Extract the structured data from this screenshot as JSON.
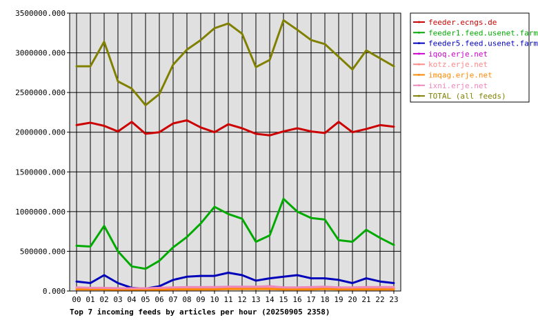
{
  "chart_data": {
    "type": "line",
    "title": "Top 7 incoming feeds by articles per hour (20250905 2358)",
    "xlabel": "",
    "ylabel": "",
    "categories": [
      "00",
      "01",
      "02",
      "03",
      "04",
      "05",
      "06",
      "07",
      "08",
      "09",
      "10",
      "11",
      "12",
      "13",
      "14",
      "15",
      "16",
      "17",
      "18",
      "19",
      "20",
      "21",
      "22",
      "23"
    ],
    "ylim": [
      0,
      3500000
    ],
    "yticks": [
      0,
      500000,
      1000000,
      1500000,
      2000000,
      2500000,
      3000000,
      3500000
    ],
    "ytick_labels": [
      "0.000",
      "500000.000",
      "1000000.000",
      "1500000.000",
      "2000000.000",
      "2500000.000",
      "3000000.000",
      "3500000.000"
    ],
    "grid": true,
    "legend_position": "top-right",
    "series": [
      {
        "name": "feeder.ecngs.de",
        "color": "#cc0000",
        "values": [
          2090000,
          2120000,
          2080000,
          2010000,
          2130000,
          1980000,
          2000000,
          2110000,
          2150000,
          2060000,
          2000000,
          2100000,
          2050000,
          1980000,
          1960000,
          2010000,
          2050000,
          2010000,
          1990000,
          2130000,
          2000000,
          2040000,
          2090000,
          2070000
        ]
      },
      {
        "name": "feeder1.feed.usenet.farm",
        "color": "#00aa00",
        "values": [
          570000,
          560000,
          820000,
          500000,
          310000,
          280000,
          380000,
          550000,
          680000,
          850000,
          1060000,
          970000,
          910000,
          620000,
          700000,
          1160000,
          1000000,
          920000,
          900000,
          640000,
          620000,
          770000,
          670000,
          580000
        ]
      },
      {
        "name": "feeder5.feed.usenet.farm",
        "color": "#0000bb",
        "values": [
          120000,
          100000,
          200000,
          100000,
          40000,
          30000,
          60000,
          140000,
          180000,
          190000,
          190000,
          230000,
          200000,
          130000,
          160000,
          180000,
          200000,
          160000,
          160000,
          140000,
          100000,
          160000,
          120000,
          100000
        ]
      },
      {
        "name": "iqoq.erje.net",
        "color": "#cc00cc",
        "values": [
          40000,
          30000,
          30000,
          30000,
          30000,
          30000,
          30000,
          40000,
          40000,
          40000,
          40000,
          40000,
          50000,
          50000,
          60000,
          40000,
          40000,
          40000,
          50000,
          40000,
          40000,
          40000,
          40000,
          40000
        ]
      },
      {
        "name": "kotz.erje.net",
        "color": "#ff8888",
        "values": [
          35000,
          30000,
          30000,
          25000,
          25000,
          25000,
          30000,
          30000,
          35000,
          35000,
          35000,
          40000,
          40000,
          40000,
          45000,
          35000,
          35000,
          40000,
          40000,
          35000,
          35000,
          35000,
          35000,
          35000
        ]
      },
      {
        "name": "imqag.erje.net",
        "color": "#ff8800",
        "values": [
          20000,
          20000,
          20000,
          15000,
          15000,
          15000,
          15000,
          20000,
          20000,
          20000,
          20000,
          25000,
          25000,
          25000,
          25000,
          20000,
          20000,
          20000,
          25000,
          20000,
          20000,
          20000,
          20000,
          20000
        ]
      },
      {
        "name": "ixni.erje.net",
        "color": "#ee88bb",
        "values": [
          45000,
          40000,
          40000,
          35000,
          35000,
          35000,
          40000,
          45000,
          50000,
          50000,
          50000,
          55000,
          55000,
          55000,
          60000,
          45000,
          45000,
          50000,
          55000,
          45000,
          45000,
          50000,
          50000,
          50000
        ]
      },
      {
        "name": "TOTAL (all feeds)",
        "color": "#808000",
        "values": [
          2830000,
          2830000,
          3140000,
          2640000,
          2550000,
          2340000,
          2480000,
          2850000,
          3040000,
          3160000,
          3310000,
          3370000,
          3240000,
          2820000,
          2910000,
          3410000,
          3290000,
          3160000,
          3110000,
          2950000,
          2790000,
          3030000,
          2930000,
          2830000
        ]
      }
    ]
  }
}
